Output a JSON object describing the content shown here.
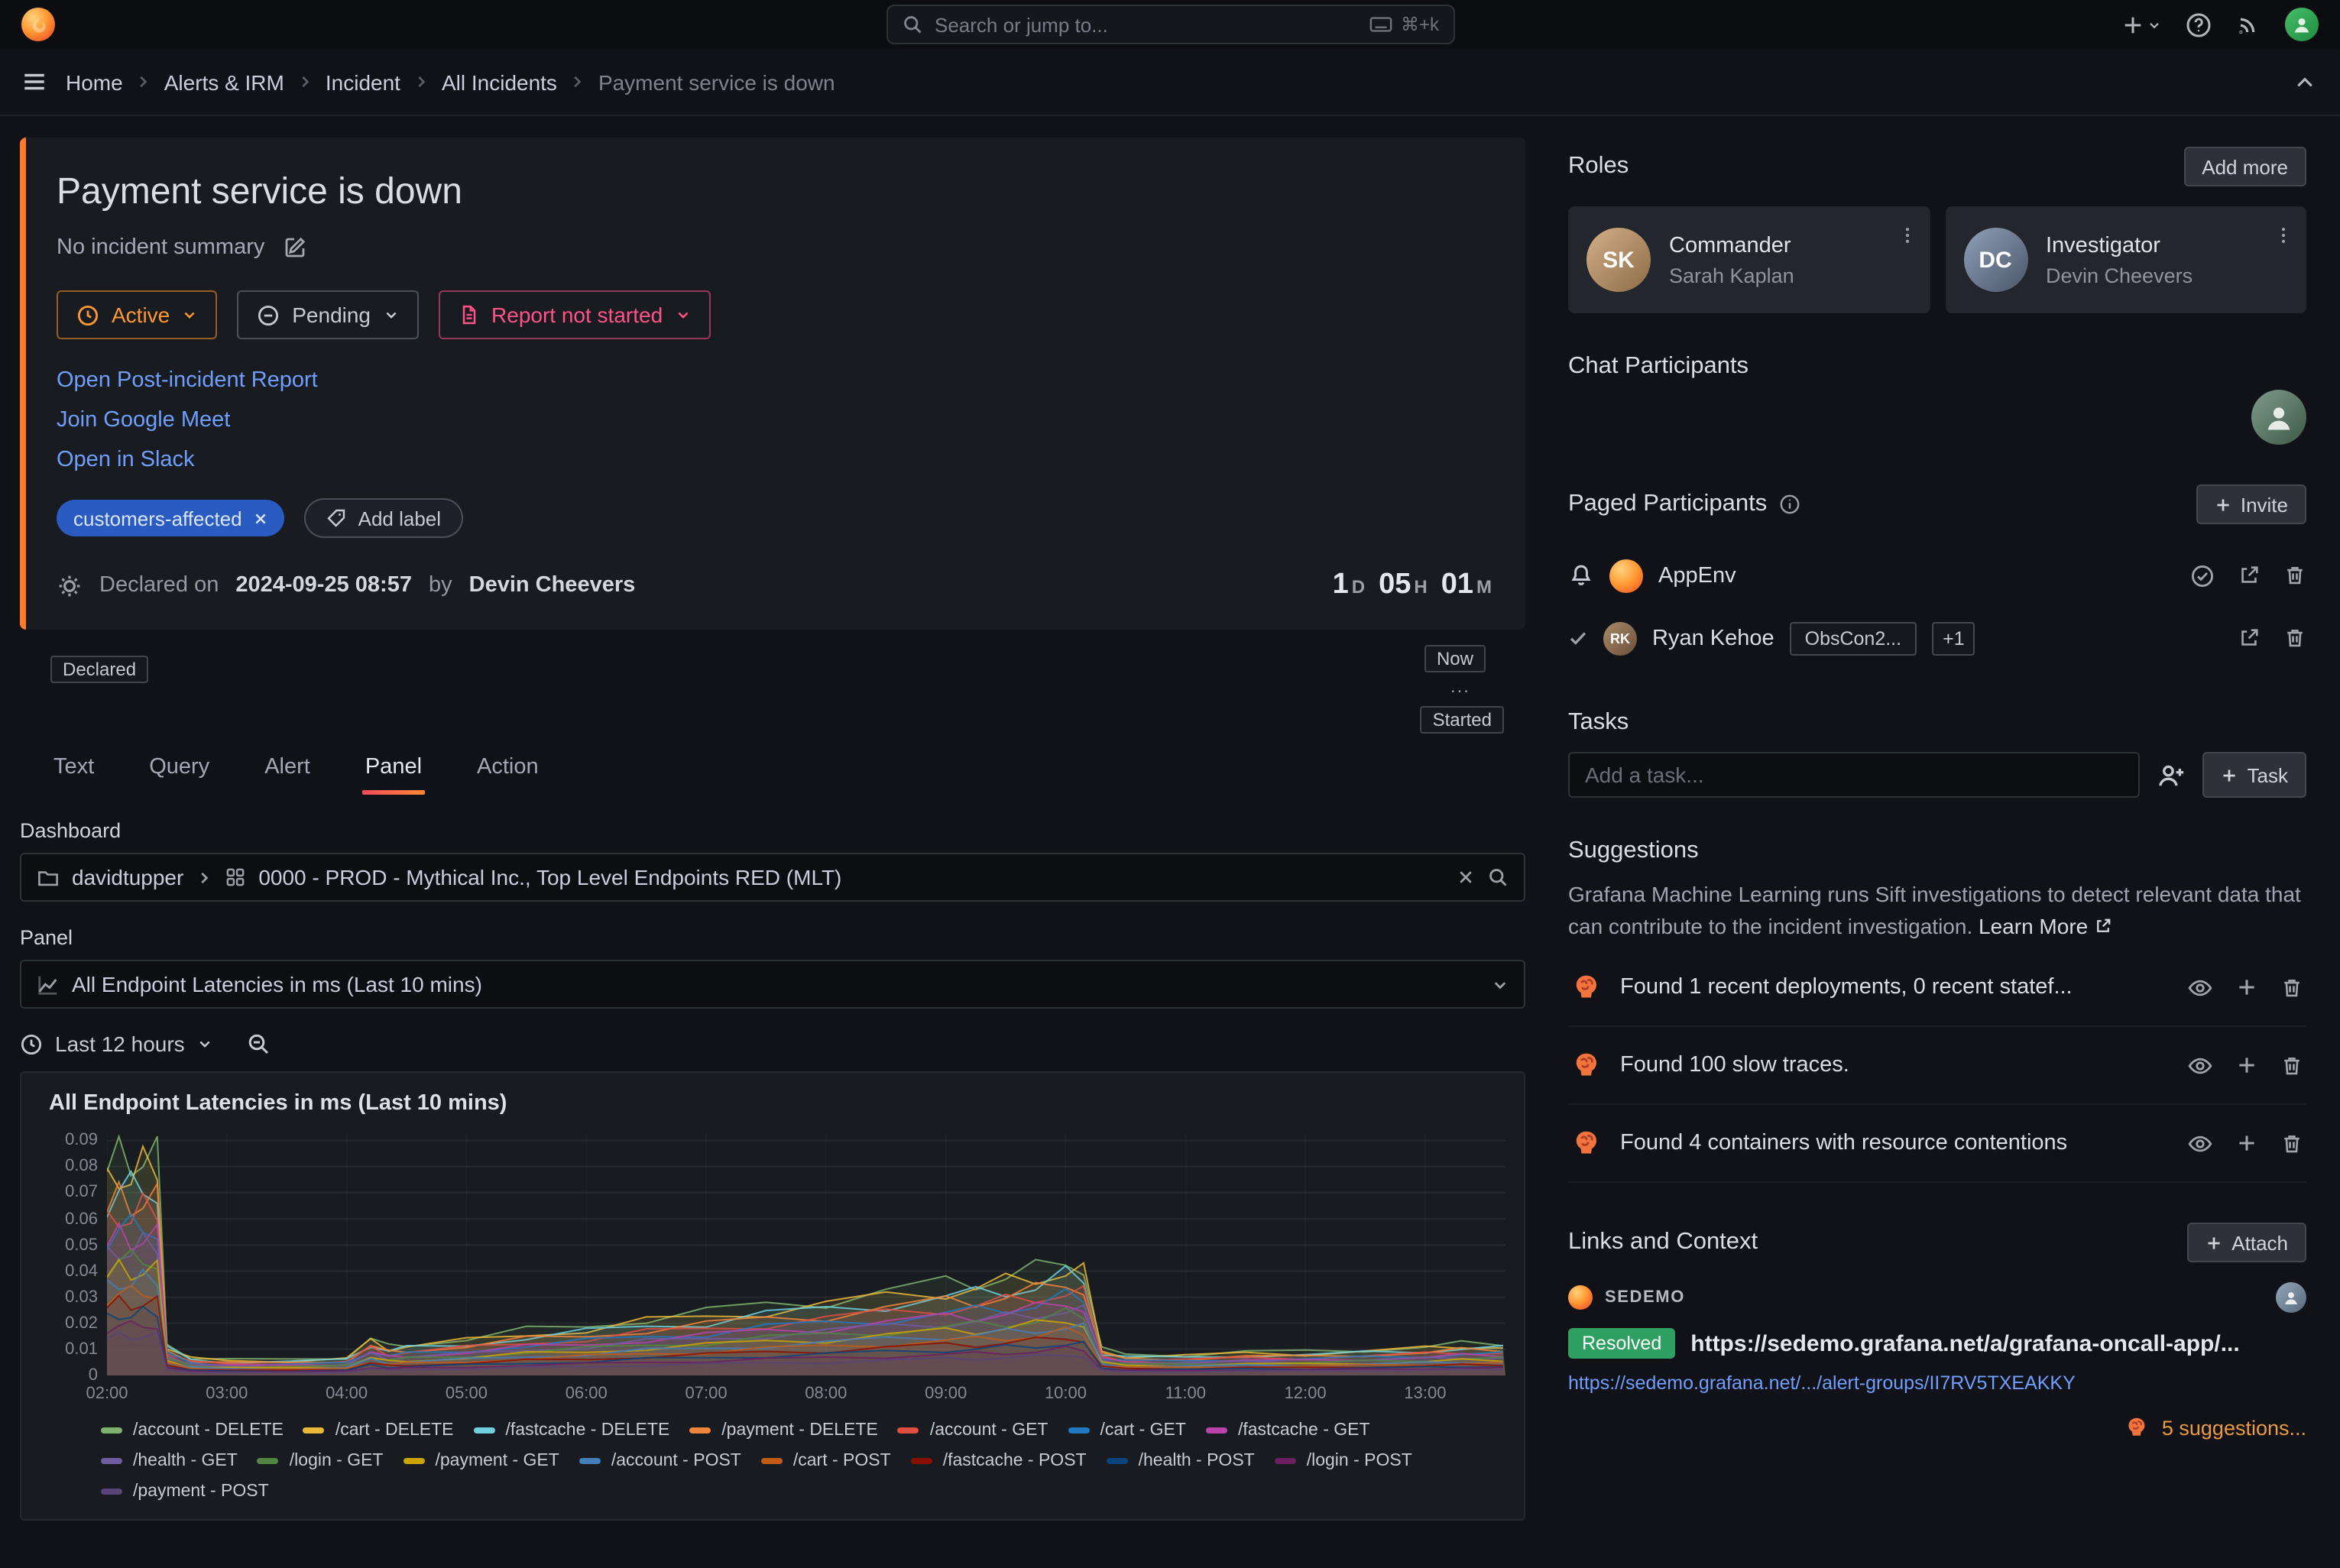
{
  "topbar": {
    "search_placeholder": "Search or jump to...",
    "search_shortcut": "⌘+k"
  },
  "breadcrumb": {
    "items": [
      "Home",
      "Alerts & IRM",
      "Incident",
      "All Incidents",
      "Payment service is down"
    ]
  },
  "incident": {
    "title": "Payment service is down",
    "summary": "No incident summary",
    "status_button": "Active",
    "severity_button": "Pending",
    "report_button": "Report not started",
    "link_report": "Open Post-incident Report",
    "link_meet": "Join Google Meet",
    "link_slack": "Open in Slack",
    "label": "customers-affected",
    "add_label_button": "Add label",
    "declared_prefix": "Declared on",
    "declared_datetime": "2024-09-25 08:57",
    "declared_by": "by",
    "declared_author": "Devin Cheevers",
    "duration": {
      "days": "1",
      "days_unit": "D",
      "hours": "05",
      "hours_unit": "H",
      "minutes": "01",
      "minutes_unit": "M"
    },
    "timeline": {
      "declared": "Declared",
      "now": "Now",
      "dots": "...",
      "started": "Started"
    }
  },
  "tabs": {
    "text": "Text",
    "query": "Query",
    "alert": "Alert",
    "panel": "Panel",
    "action": "Action"
  },
  "panel_form": {
    "dashboard_label": "Dashboard",
    "dashboard_owner": "davidtupper",
    "dashboard_name": "0000 - PROD - Mythical Inc., Top Level Endpoints RED (MLT)",
    "panel_label": "Panel",
    "panel_name": "All Endpoint Latencies in ms (Last 10 mins)",
    "time_range": "Last 12 hours"
  },
  "chart_data": {
    "type": "area",
    "title": "All Endpoint Latencies in ms (Last 10 mins)",
    "x_axis": "time",
    "ylabel": "",
    "legend_position": "bottom",
    "grid": true,
    "x_ticks": [
      "02:00",
      "03:00",
      "04:00",
      "05:00",
      "06:00",
      "07:00",
      "08:00",
      "09:00",
      "10:00",
      "11:00",
      "12:00",
      "13:00"
    ],
    "x_tick_hours": [
      2,
      3,
      4,
      5,
      6,
      7,
      8,
      9,
      10,
      11,
      12,
      13
    ],
    "y_ticks": [
      "0.09",
      "0.08",
      "0.07",
      "0.06",
      "0.05",
      "0.04",
      "0.03",
      "0.02",
      "0.01",
      "0"
    ],
    "y_tick_values": [
      0.09,
      0.08,
      0.07,
      0.06,
      0.05,
      0.04,
      0.03,
      0.02,
      0.01,
      0
    ],
    "ylim": [
      0,
      0.0925
    ],
    "xlim_hours": [
      2.0,
      13.67
    ],
    "x_hours": [
      2.0,
      2.1,
      2.2,
      2.3,
      2.42,
      2.5,
      2.7,
      3.0,
      3.5,
      4.0,
      4.2,
      4.35,
      4.5,
      5.0,
      5.5,
      6.0,
      6.5,
      7.0,
      7.5,
      8.0,
      8.5,
      9.0,
      9.25,
      9.5,
      9.75,
      10.0,
      10.15,
      10.3,
      10.5,
      11.0,
      11.5,
      12.0,
      12.5,
      13.0,
      13.3,
      13.65
    ],
    "envelope": [
      0.078,
      0.084,
      0.082,
      0.085,
      0.083,
      0.012,
      0.007,
      0.006,
      0.006,
      0.007,
      0.014,
      0.011,
      0.012,
      0.014,
      0.017,
      0.019,
      0.022,
      0.024,
      0.027,
      0.029,
      0.032,
      0.035,
      0.036,
      0.038,
      0.04,
      0.044,
      0.042,
      0.01,
      0.008,
      0.008,
      0.009,
      0.009,
      0.01,
      0.011,
      0.012,
      0.012
    ],
    "series": [
      {
        "name": "/account - DELETE",
        "color": "#7EB26D",
        "scale": 1.0
      },
      {
        "name": "/cart - DELETE",
        "color": "#EAB839",
        "scale": 0.93
      },
      {
        "name": "/fastcache - DELETE",
        "color": "#6ED0E0",
        "scale": 0.86
      },
      {
        "name": "/payment - DELETE",
        "color": "#EF843C",
        "scale": 0.8
      },
      {
        "name": "/account - GET",
        "color": "#E24D42",
        "scale": 0.74
      },
      {
        "name": "/cart - GET",
        "color": "#1F78C1",
        "scale": 0.68
      },
      {
        "name": "/fastcache - GET",
        "color": "#BA43A9",
        "scale": 0.63
      },
      {
        "name": "/health - GET",
        "color": "#705DA0",
        "scale": 0.58
      },
      {
        "name": "/login - GET",
        "color": "#508642",
        "scale": 0.53
      },
      {
        "name": "/payment - GET",
        "color": "#CCA300",
        "scale": 0.48
      },
      {
        "name": "/account - POST",
        "color": "#447EBC",
        "scale": 0.43
      },
      {
        "name": "/cart - POST",
        "color": "#C15C17",
        "scale": 0.38
      },
      {
        "name": "/fastcache - POST",
        "color": "#890F02",
        "scale": 0.33
      },
      {
        "name": "/health - POST",
        "color": "#0A437C",
        "scale": 0.28
      },
      {
        "name": "/login - POST",
        "color": "#6D1F62",
        "scale": 0.23
      },
      {
        "name": "/payment - POST",
        "color": "#584477",
        "scale": 0.18
      }
    ]
  },
  "sidebar": {
    "roles": {
      "title": "Roles",
      "add_more_button": "Add more",
      "cards": [
        {
          "role": "Commander",
          "name": "Sarah Kaplan",
          "initials": "SK"
        },
        {
          "role": "Investigator",
          "name": "Devin Cheevers",
          "initials": "DC"
        }
      ]
    },
    "chat": {
      "title": "Chat Participants"
    },
    "paged": {
      "title": "Paged Participants",
      "invite_button": "Invite",
      "rows": [
        {
          "name": "AppEnv"
        },
        {
          "name": "Ryan Kehoe",
          "initials": "RK",
          "badge": "ObsCon2...",
          "more_badge": "+1"
        }
      ]
    },
    "tasks": {
      "title": "Tasks",
      "input_placeholder": "Add a task...",
      "task_button": "Task"
    },
    "suggestions": {
      "title": "Suggestions",
      "description": "Grafana Machine Learning runs Sift investigations to detect relevant data that can contribute to the incident investigation.",
      "learn_more": "Learn More",
      "items": [
        "Found 1 recent deployments, 0 recent statef...",
        "Found 100 slow traces.",
        "Found 4 containers with resource contentions"
      ]
    },
    "links_context": {
      "title": "Links and Context",
      "attach_button": "Attach",
      "source": "SEDEMO",
      "status_badge": "Resolved",
      "primary_link": "https://sedemo.grafana.net/a/grafana-oncall-app/...",
      "secondary_link": "https://sedemo.grafana.net/.../alert-groups/II7RV5TXEAKKY",
      "suggestions_link": "5 suggestions..."
    }
  }
}
